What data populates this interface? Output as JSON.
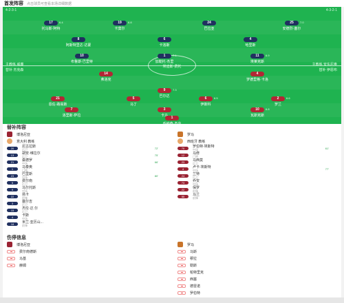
{
  "header": {
    "title": "首发阵容",
    "subtitle": "点击球员可查看本场详细数据"
  },
  "pitch": {
    "home_caption": "4-2-3-1",
    "away_caption": "4-3-2-1",
    "center_label": "埃迪斯·费托",
    "home_side": [
      "主教练 威廉",
      "替补 杰克森"
    ],
    "away_side": [
      "主教练 安东尼奥",
      "替补 伊恩布"
    ],
    "players": [
      {
        "num": "17",
        "name": "托马斯·阿特",
        "team": "navy",
        "chip": "6.4"
      },
      {
        "num": "19",
        "name": "卡莫尔",
        "team": "navy",
        "chip": "6.8"
      },
      {
        "num": "24",
        "name": "巴拉亚",
        "team": "navy"
      },
      {
        "num": "25",
        "name": "安德烈·塞尔",
        "team": "navy",
        "chip": "7.0"
      },
      {
        "num": "8",
        "name": "阿斯特里达·达蒙",
        "team": "navy"
      },
      {
        "num": "6",
        "name": "卡洛斯",
        "team": "navy"
      },
      {
        "num": "4",
        "name": "哈里斯",
        "team": "navy"
      },
      {
        "num": "10",
        "name": "布鲁斯·巴里特",
        "team": "navy"
      },
      {
        "num": "1",
        "name": "加勒托·杰里",
        "team": "navy",
        "chip": "7.1"
      },
      {
        "num": "11",
        "name": "埃莱克斯",
        "team": "navy",
        "chip": "6.9"
      },
      {
        "num": "14",
        "name": "弗洛克",
        "team": "red"
      },
      {
        "num": "9",
        "name": "巴尔达",
        "team": "red",
        "chip": "7.3"
      },
      {
        "num": "4",
        "name": "罗德里格·卡洛",
        "team": "red"
      },
      {
        "num": "21",
        "name": "恩佐·路易斯",
        "team": "red"
      },
      {
        "num": "5",
        "name": "马丁",
        "team": "red"
      },
      {
        "num": "6",
        "name": "伊斯科",
        "team": "red",
        "chip": "6.5"
      },
      {
        "num": "2",
        "name": "罗兰",
        "team": "red",
        "chip": "6.6"
      },
      {
        "num": "7",
        "name": "洛里斯·萨拉",
        "team": "red"
      },
      {
        "num": "3",
        "name": "卡马",
        "team": "red"
      },
      {
        "num": "10",
        "name": "瓦斯克斯",
        "team": "red",
        "chip": "6.8"
      },
      {
        "num": "1",
        "name": "乔纳森·杰内",
        "team": "red"
      }
    ]
  },
  "bench": {
    "title": "替补阵容",
    "home": {
      "team": "博洛尼亚",
      "coach": "意大利 教练",
      "rows": [
        {
          "num": "20",
          "name": "尼古拉斯",
          "pos": "后卫",
          "tag": "72'"
        },
        {
          "num": "13",
          "name": "胡安·维拉尔",
          "pos": "后卫",
          "tag": "75'"
        },
        {
          "num": "21",
          "name": "桑德罗",
          "pos": "中场",
          "tag": "66'"
        },
        {
          "num": "1",
          "name": "马泰奥",
          "pos": "门将"
        },
        {
          "num": "23",
          "name": "巴里斯",
          "pos": "中场",
          "tag": "80'"
        },
        {
          "num": "5",
          "name": "费尔南",
          "pos": "后卫"
        },
        {
          "num": "9",
          "name": "马尔托斯",
          "pos": "中场"
        },
        {
          "num": "22",
          "name": "扬卡",
          "pos": "前锋"
        },
        {
          "num": "3",
          "name": "塞尔吉",
          "pos": "后卫"
        },
        {
          "num": "15",
          "name": "杰伦·达 尔",
          "pos": "后卫"
        },
        {
          "num": "4",
          "name": "卡斯",
          "pos": "中场"
        },
        {
          "num": "18",
          "name": "米兰·亚历山...",
          "pos": "前锋"
        }
      ]
    },
    "away": {
      "team": "罗马",
      "coach": "西班牙 教练",
      "rows": [
        {
          "num": "70",
          "name": "罗伯特·埃斯特",
          "pos": "中场",
          "tag": "61'"
        },
        {
          "num": "12",
          "name": "马修",
          "pos": "门将"
        },
        {
          "num": "23",
          "name": "马西莫",
          "pos": "后卫"
        },
        {
          "num": "4",
          "name": "卢卡·埃斯特",
          "pos": "中场",
          "tag": "77'"
        },
        {
          "num": "24",
          "name": "兰特",
          "pos": "后卫"
        },
        {
          "num": "73",
          "name": "乔安",
          "pos": "中场"
        },
        {
          "num": "22",
          "name": "保罗",
          "pos": "前锋"
        },
        {
          "num": "55",
          "name": "马兰",
          "pos": "前锋"
        }
      ]
    }
  },
  "injury": {
    "title": "伤停信息",
    "home_team": "博洛尼亚",
    "away_team": "罗马",
    "home": [
      "费尔南德斯",
      "马基",
      "赫姆"
    ],
    "away": [
      "马斯",
      "穆拉",
      "勒斯",
      "帕特里克",
      "西塞",
      "德雷诺",
      "罗伯特"
    ]
  },
  "colors": {
    "pitch": "#1fb350",
    "navy": "#20305f",
    "red": "#b22634",
    "accent": "#2ba34f"
  }
}
